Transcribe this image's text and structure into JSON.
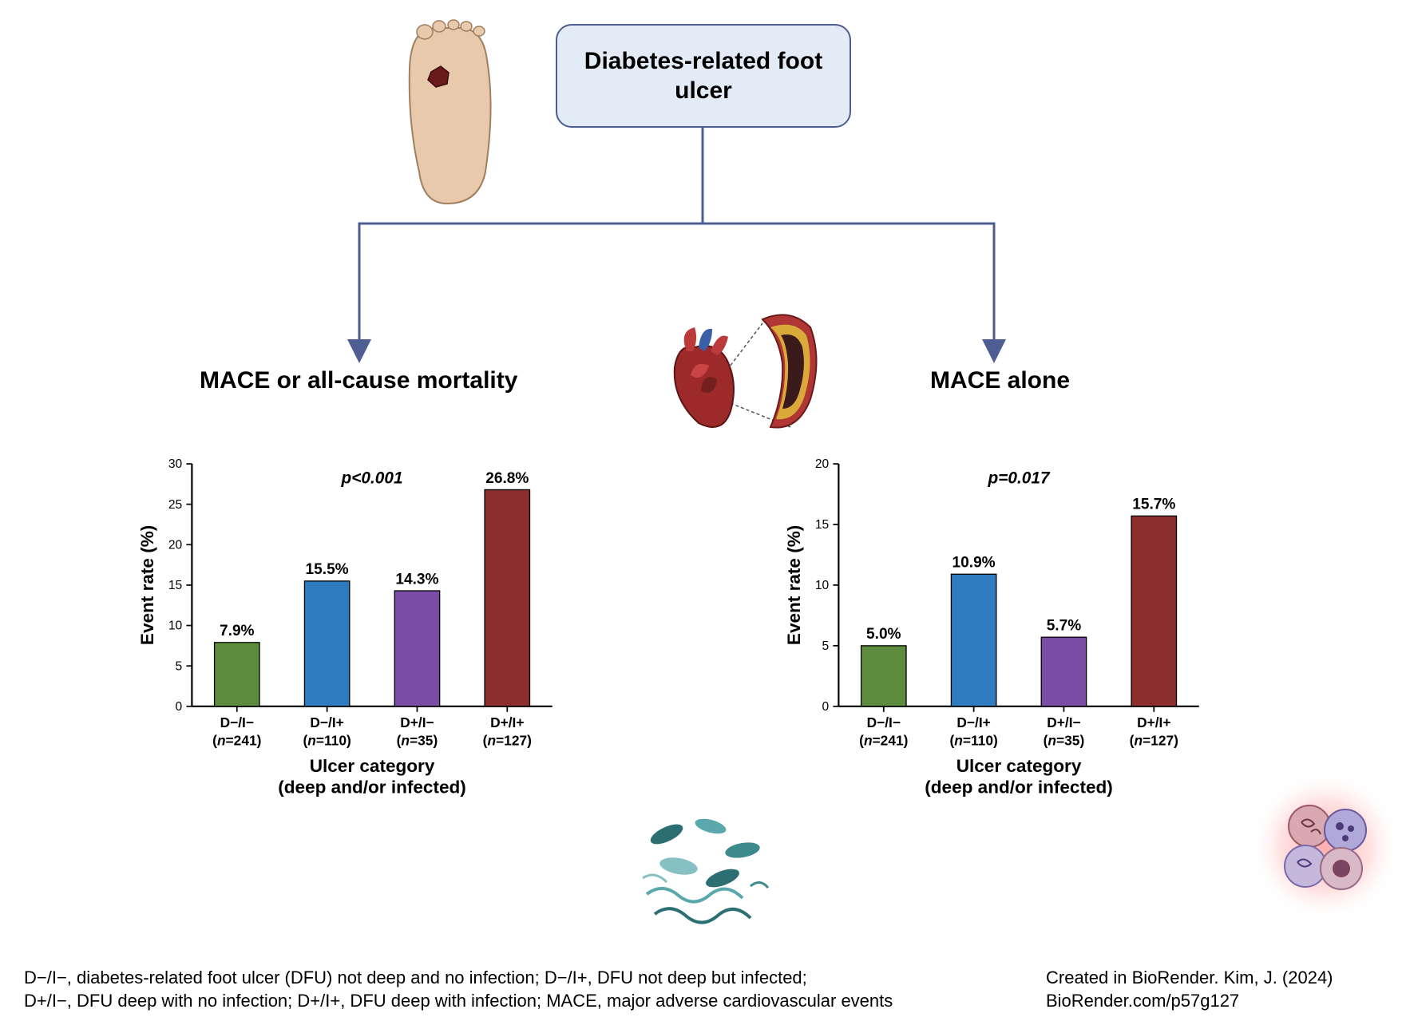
{
  "title_box": "Diabetes-related foot ulcer",
  "branch_left_title": "MACE or all-cause mortality",
  "branch_right_title": "MACE alone",
  "colors": {
    "box_bg": "#e3ebf7",
    "box_border": "#4e5e92",
    "arrow": "#4e5e92",
    "axis": "#000000",
    "text": "#000000"
  },
  "chart_left": {
    "type": "bar",
    "ylabel": "Event rate (%)",
    "xlabel": "Ulcer category",
    "xlabel_sub": "(deep and/or infected)",
    "p_value": "p<0.001",
    "ylim": [
      0,
      30
    ],
    "ytick_step": 5,
    "label_fontsize": 22,
    "tick_fontsize": 18,
    "categories": [
      "D−/I−",
      "D−/I+",
      "D+/I−",
      "D+/I+"
    ],
    "n_labels": [
      "(n=241)",
      "(n=110)",
      "(n=35)",
      "(n=127)"
    ],
    "values": [
      7.9,
      15.5,
      14.3,
      26.8
    ],
    "value_labels": [
      "7.9%",
      "15.5%",
      "14.3%",
      "26.8%"
    ],
    "bar_colors": [
      "#5e8c3e",
      "#2f7bbf",
      "#7a4ea5",
      "#8c2e2e"
    ],
    "bar_width": 0.5,
    "background_color": "#ffffff"
  },
  "chart_right": {
    "type": "bar",
    "ylabel": "Event rate (%)",
    "xlabel": "Ulcer category",
    "xlabel_sub": "(deep and/or infected)",
    "p_value": "p=0.017",
    "ylim": [
      0,
      20
    ],
    "ytick_step": 5,
    "label_fontsize": 22,
    "tick_fontsize": 18,
    "categories": [
      "D−/I−",
      "D−/I+",
      "D+/I−",
      "D+/I+"
    ],
    "n_labels": [
      "(n=241)",
      "(n=110)",
      "(n=35)",
      "(n=127)"
    ],
    "values": [
      5.0,
      10.9,
      5.7,
      15.7
    ],
    "value_labels": [
      "5.0%",
      "10.9%",
      "5.7%",
      "15.7%"
    ],
    "bar_colors": [
      "#5e8c3e",
      "#2f7bbf",
      "#7a4ea5",
      "#8c2e2e"
    ],
    "bar_width": 0.5,
    "background_color": "#ffffff"
  },
  "footnote_left_line1": "D−/I−, diabetes-related foot ulcer (DFU) not deep and no infection; D−/I+, DFU not deep but infected;",
  "footnote_left_line2": "D+/I−, DFU deep with no infection; D+/I+, DFU deep with infection; MACE, major adverse cardiovascular events",
  "footnote_right_line1": "Created in BioRender. Kim, J. (2024)",
  "footnote_right_line2": "BioRender.com/p57g127",
  "icons": {
    "foot": "foot-ulcer-icon",
    "heart": "heart-artery-icon",
    "bacteria": "bacteria-icon",
    "cells": "blood-cells-icon"
  }
}
